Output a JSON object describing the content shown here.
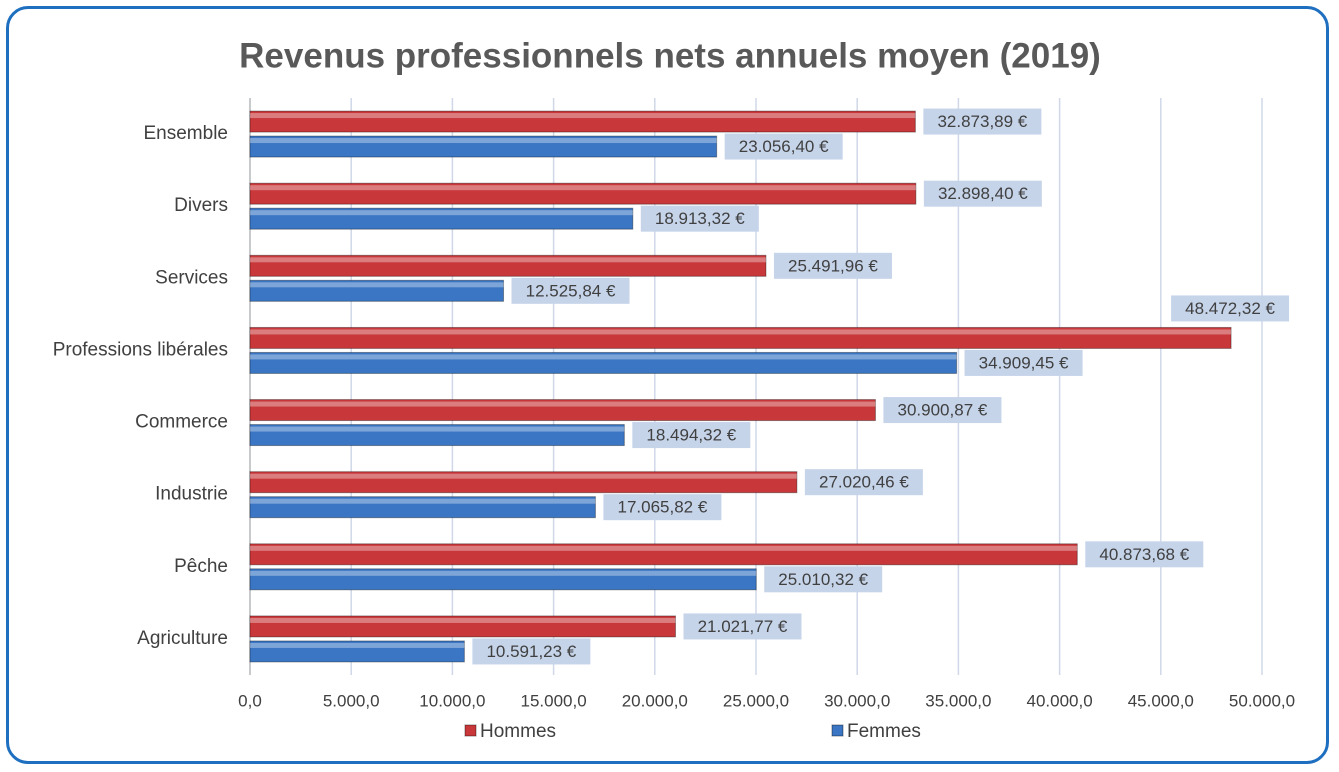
{
  "chart_data": {
    "type": "bar",
    "orientation": "horizontal",
    "title": "Revenus professionnels nets annuels moyen (2019)",
    "categories": [
      "Ensemble",
      "Divers",
      "Services",
      "Professions libérales",
      "Commerce",
      "Industrie",
      "Pêche",
      "Agriculture"
    ],
    "series": [
      {
        "name": "Hommes",
        "color": "#c8373a",
        "values": [
          32873.89,
          32898.4,
          25491.96,
          48472.32,
          30900.87,
          27020.46,
          40873.68,
          21021.77
        ],
        "value_labels": [
          "32.873,89 €",
          "32.898,40 €",
          "25.491,96 €",
          "48.472,32 €",
          "30.900,87 €",
          "27.020,46 €",
          "40.873,68 €",
          "21.021,77 €"
        ]
      },
      {
        "name": "Femmes",
        "color": "#3a76c4",
        "values": [
          23056.4,
          18913.32,
          12525.84,
          34909.45,
          18494.32,
          17065.82,
          25010.32,
          10591.23
        ],
        "value_labels": [
          "23.056,40 €",
          "18.913,32 €",
          "12.525,84 €",
          "34.909,45 €",
          "18.494,32 €",
          "17.065,82 €",
          "25.010,32 €",
          "10.591,23 €"
        ]
      }
    ],
    "xlim": [
      0,
      50000
    ],
    "xticks": [
      {
        "value": 0,
        "label": "0,0"
      },
      {
        "value": 5000,
        "label": "5.000,0"
      },
      {
        "value": 10000,
        "label": "10.000,0"
      },
      {
        "value": 15000,
        "label": "15.000,0"
      },
      {
        "value": 20000,
        "label": "20.000,0"
      },
      {
        "value": 25000,
        "label": "25.000,0"
      },
      {
        "value": 30000,
        "label": "30.000,0"
      },
      {
        "value": 35000,
        "label": "35.000,0"
      },
      {
        "value": 40000,
        "label": "40.000,0"
      },
      {
        "value": 45000,
        "label": "45.000,0"
      },
      {
        "value": 50000,
        "label": "50.000,0"
      }
    ],
    "grid": true,
    "legend": "bottom"
  }
}
